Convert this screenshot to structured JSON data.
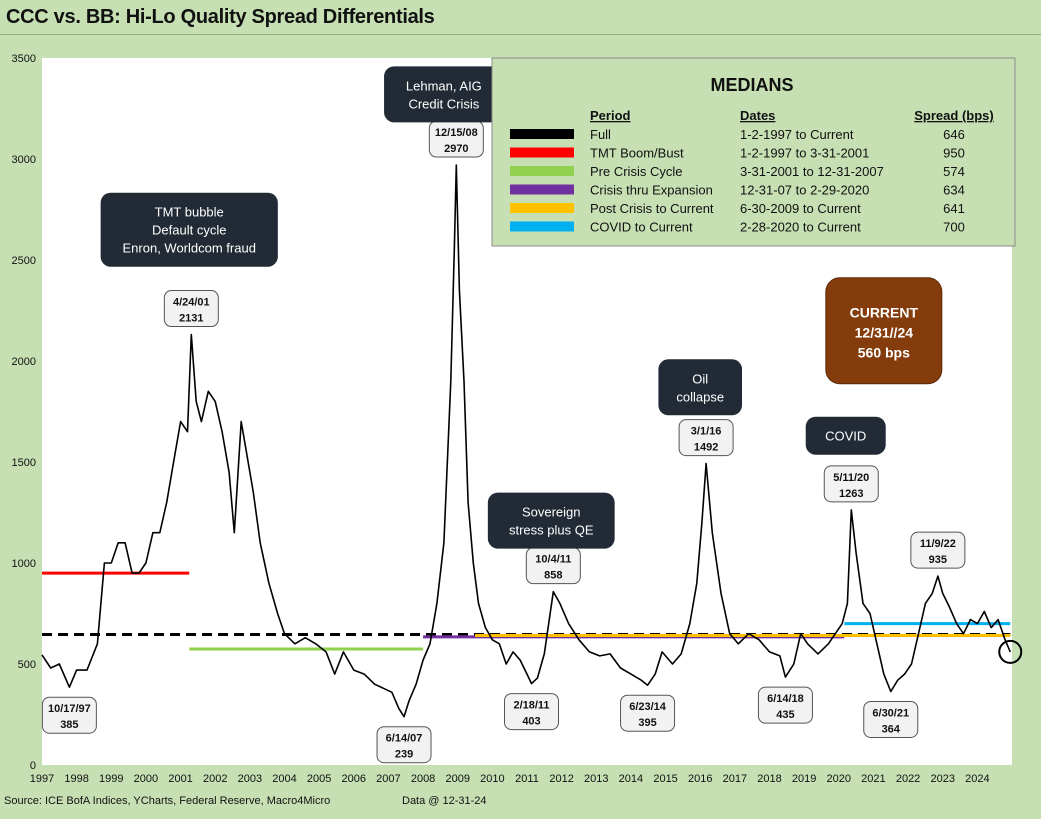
{
  "title": "CCC vs. BB: Hi-Lo Quality Spread Differentials",
  "footer": {
    "source": "Source: ICE BofA Indices, YCharts, Federal Reserve, Macro4Micro",
    "data_date": "Data @ 12-31-24"
  },
  "colors": {
    "background": "#c6e0b4",
    "plot_area": "#ffffff",
    "series_line": "#000000",
    "callout_dark": "#222a35",
    "callout_current": "#843c0c",
    "label_box": "#f2f2f2",
    "medians_box": "#c6e0b4"
  },
  "chart_data": {
    "type": "line",
    "title": "CCC vs. BB: Hi-Lo Quality Spread Differentials",
    "xlabel": "",
    "ylabel": "",
    "xlim": [
      1997.0,
      2025.0
    ],
    "ylim": [
      0,
      3500
    ],
    "yticks": [
      0,
      500,
      1000,
      1500,
      2000,
      2500,
      3000,
      3500
    ],
    "xticks": [
      "1997",
      "1998",
      "1999",
      "2000",
      "2001",
      "2002",
      "2003",
      "2004",
      "2005",
      "2006",
      "2007",
      "2008",
      "2009",
      "2010",
      "2011",
      "2012",
      "2013",
      "2014",
      "2015",
      "2016",
      "2017",
      "2018",
      "2019",
      "2020",
      "2021",
      "2022",
      "2023",
      "2024"
    ],
    "grid": false,
    "series": [
      {
        "name": "",
        "color": "#000000",
        "points": [
          [
            1997.0,
            545
          ],
          [
            1997.25,
            480
          ],
          [
            1997.5,
            500
          ],
          [
            1997.79,
            385
          ],
          [
            1998.0,
            470
          ],
          [
            1998.3,
            470
          ],
          [
            1998.6,
            600
          ],
          [
            1998.8,
            1000
          ],
          [
            1999.0,
            1000
          ],
          [
            1999.2,
            1100
          ],
          [
            1999.4,
            1100
          ],
          [
            1999.6,
            950
          ],
          [
            1999.8,
            950
          ],
          [
            2000.0,
            1000
          ],
          [
            2000.2,
            1150
          ],
          [
            2000.4,
            1150
          ],
          [
            2000.6,
            1300
          ],
          [
            2000.8,
            1500
          ],
          [
            2001.0,
            1700
          ],
          [
            2001.2,
            1650
          ],
          [
            2001.31,
            2131
          ],
          [
            2001.45,
            1800
          ],
          [
            2001.6,
            1700
          ],
          [
            2001.8,
            1850
          ],
          [
            2002.0,
            1800
          ],
          [
            2002.2,
            1650
          ],
          [
            2002.4,
            1450
          ],
          [
            2002.55,
            1150
          ],
          [
            2002.75,
            1700
          ],
          [
            2002.9,
            1550
          ],
          [
            2003.1,
            1350
          ],
          [
            2003.3,
            1100
          ],
          [
            2003.55,
            900
          ],
          [
            2003.8,
            750
          ],
          [
            2004.0,
            650
          ],
          [
            2004.3,
            600
          ],
          [
            2004.6,
            630
          ],
          [
            2004.9,
            600
          ],
          [
            2005.2,
            560
          ],
          [
            2005.45,
            450
          ],
          [
            2005.7,
            560
          ],
          [
            2006.0,
            470
          ],
          [
            2006.3,
            450
          ],
          [
            2006.6,
            400
          ],
          [
            2006.85,
            380
          ],
          [
            2007.1,
            360
          ],
          [
            2007.3,
            280
          ],
          [
            2007.45,
            239
          ],
          [
            2007.6,
            320
          ],
          [
            2007.8,
            400
          ],
          [
            2008.0,
            520
          ],
          [
            2008.2,
            600
          ],
          [
            2008.4,
            800
          ],
          [
            2008.6,
            1100
          ],
          [
            2008.8,
            1900
          ],
          [
            2008.9,
            2550
          ],
          [
            2008.96,
            2970
          ],
          [
            2009.05,
            2350
          ],
          [
            2009.18,
            1900
          ],
          [
            2009.3,
            1300
          ],
          [
            2009.45,
            1000
          ],
          [
            2009.6,
            800
          ],
          [
            2009.8,
            680
          ],
          [
            2010.0,
            620
          ],
          [
            2010.2,
            600
          ],
          [
            2010.4,
            500
          ],
          [
            2010.6,
            560
          ],
          [
            2010.8,
            520
          ],
          [
            2011.0,
            450
          ],
          [
            2011.13,
            403
          ],
          [
            2011.3,
            430
          ],
          [
            2011.5,
            550
          ],
          [
            2011.76,
            858
          ],
          [
            2011.95,
            800
          ],
          [
            2012.2,
            700
          ],
          [
            2012.5,
            620
          ],
          [
            2012.8,
            560
          ],
          [
            2013.1,
            540
          ],
          [
            2013.4,
            550
          ],
          [
            2013.7,
            480
          ],
          [
            2014.0,
            450
          ],
          [
            2014.3,
            420
          ],
          [
            2014.48,
            395
          ],
          [
            2014.7,
            450
          ],
          [
            2014.9,
            560
          ],
          [
            2015.2,
            500
          ],
          [
            2015.45,
            550
          ],
          [
            2015.7,
            700
          ],
          [
            2015.9,
            900
          ],
          [
            2016.05,
            1200
          ],
          [
            2016.17,
            1492
          ],
          [
            2016.35,
            1150
          ],
          [
            2016.6,
            850
          ],
          [
            2016.85,
            650
          ],
          [
            2017.1,
            600
          ],
          [
            2017.4,
            650
          ],
          [
            2017.7,
            620
          ],
          [
            2018.0,
            560
          ],
          [
            2018.3,
            540
          ],
          [
            2018.46,
            435
          ],
          [
            2018.7,
            500
          ],
          [
            2018.9,
            650
          ],
          [
            2019.1,
            600
          ],
          [
            2019.4,
            550
          ],
          [
            2019.7,
            600
          ],
          [
            2019.9,
            650
          ],
          [
            2020.1,
            700
          ],
          [
            2020.25,
            800
          ],
          [
            2020.36,
            1263
          ],
          [
            2020.5,
            1050
          ],
          [
            2020.7,
            800
          ],
          [
            2020.9,
            750
          ],
          [
            2021.1,
            600
          ],
          [
            2021.3,
            450
          ],
          [
            2021.5,
            364
          ],
          [
            2021.7,
            420
          ],
          [
            2021.9,
            450
          ],
          [
            2022.1,
            500
          ],
          [
            2022.3,
            650
          ],
          [
            2022.5,
            800
          ],
          [
            2022.7,
            850
          ],
          [
            2022.86,
            935
          ],
          [
            2023.0,
            850
          ],
          [
            2023.2,
            780
          ],
          [
            2023.4,
            700
          ],
          [
            2023.6,
            650
          ],
          [
            2023.8,
            720
          ],
          [
            2024.0,
            700
          ],
          [
            2024.2,
            760
          ],
          [
            2024.4,
            680
          ],
          [
            2024.6,
            720
          ],
          [
            2024.8,
            620
          ],
          [
            2024.95,
            560
          ]
        ]
      }
    ],
    "reference_lines": [
      {
        "name": "Full",
        "color": "#000000",
        "dashed": true,
        "x": [
          1997.0,
          2024.95
        ],
        "y": 646
      },
      {
        "name": "TMT Boom/Bust",
        "color": "#ff0000",
        "dashed": false,
        "x": [
          1997.0,
          2001.25
        ],
        "y": 950
      },
      {
        "name": "Pre Crisis Cycle",
        "color": "#92d050",
        "dashed": false,
        "x": [
          2001.25,
          2008.0
        ],
        "y": 574
      },
      {
        "name": "Crisis thru Expansion",
        "color": "#7030a0",
        "dashed": false,
        "x": [
          2008.0,
          2020.16
        ],
        "y": 634
      },
      {
        "name": "Post Crisis to Current",
        "color": "#ffc000",
        "dashed": false,
        "x": [
          2009.5,
          2024.95
        ],
        "y": 641
      },
      {
        "name": "COVID to Current",
        "color": "#00b0f0",
        "dashed": false,
        "x": [
          2020.16,
          2024.95
        ],
        "y": 700
      }
    ],
    "point_labels": [
      {
        "date": "10/17/97",
        "value": "385",
        "x": 1997.79,
        "y": 385,
        "pos": "below"
      },
      {
        "date": "4/24/01",
        "value": "2131",
        "x": 2001.31,
        "y": 2131,
        "pos": "above"
      },
      {
        "date": "6/14/07",
        "value": "239",
        "x": 2007.45,
        "y": 239,
        "pos": "below"
      },
      {
        "date": "12/15/08",
        "value": "2970",
        "x": 2008.96,
        "y": 2970,
        "pos": "above"
      },
      {
        "date": "2/18/11",
        "value": "403",
        "x": 2011.13,
        "y": 403,
        "pos": "below"
      },
      {
        "date": "10/4/11",
        "value": "858",
        "x": 2011.76,
        "y": 858,
        "pos": "above"
      },
      {
        "date": "6/23/14",
        "value": "395",
        "x": 2014.48,
        "y": 395,
        "pos": "below"
      },
      {
        "date": "3/1/16",
        "value": "1492",
        "x": 2016.17,
        "y": 1492,
        "pos": "above"
      },
      {
        "date": "6/14/18",
        "value": "435",
        "x": 2018.46,
        "y": 435,
        "pos": "below"
      },
      {
        "date": "5/11/20",
        "value": "1263",
        "x": 2020.36,
        "y": 1263,
        "pos": "above"
      },
      {
        "date": "6/30/21",
        "value": "364",
        "x": 2021.5,
        "y": 364,
        "pos": "below"
      },
      {
        "date": "11/9/22",
        "value": "935",
        "x": 2022.86,
        "y": 935,
        "pos": "above"
      }
    ],
    "annotations": [
      {
        "lines": [
          "TMT bubble",
          "Default cycle",
          "Enron, Worldcom fraud"
        ],
        "x": 2001.25,
        "y": 2650
      },
      {
        "lines": [
          "Lehman, AIG",
          "Credit Crisis"
        ],
        "x": 2008.6,
        "y": 3320
      },
      {
        "lines": [
          "Sovereign",
          "stress plus QE"
        ],
        "x": 2011.7,
        "y": 1210
      },
      {
        "lines": [
          "Oil",
          "collapse"
        ],
        "x": 2016.0,
        "y": 1870
      },
      {
        "lines": [
          "COVID"
        ],
        "x": 2020.2,
        "y": 1630
      }
    ],
    "current_callout": {
      "lines": [
        "CURRENT",
        "12/31//24",
        "560 bps"
      ],
      "x": 2021.3,
      "y": 2150
    },
    "current_marker": {
      "x": 2024.95,
      "y": 560
    },
    "medians": {
      "heading": "MEDIANS",
      "columns": [
        "Period",
        "Dates",
        "Spread (bps)"
      ],
      "rows": [
        {
          "swatch": "#000000",
          "period": "Full",
          "dates": "1-2-1997 to Current",
          "spread": "646"
        },
        {
          "swatch": "#ff0000",
          "period": "TMT Boom/Bust",
          "dates": "1-2-1997 to 3-31-2001",
          "spread": "950"
        },
        {
          "swatch": "#92d050",
          "period": "Pre Crisis Cycle",
          "dates": "3-31-2001 to 12-31-2007",
          "spread": "574"
        },
        {
          "swatch": "#7030a0",
          "period": "Crisis thru Expansion",
          "dates": "12-31-07 to 2-29-2020",
          "spread": "634"
        },
        {
          "swatch": "#ffc000",
          "period": "Post Crisis to Current",
          "dates": "6-30-2009 to Current",
          "spread": "641"
        },
        {
          "swatch": "#00b0f0",
          "period": "COVID to Current",
          "dates": "2-28-2020 to Current",
          "spread": "700"
        }
      ]
    }
  }
}
